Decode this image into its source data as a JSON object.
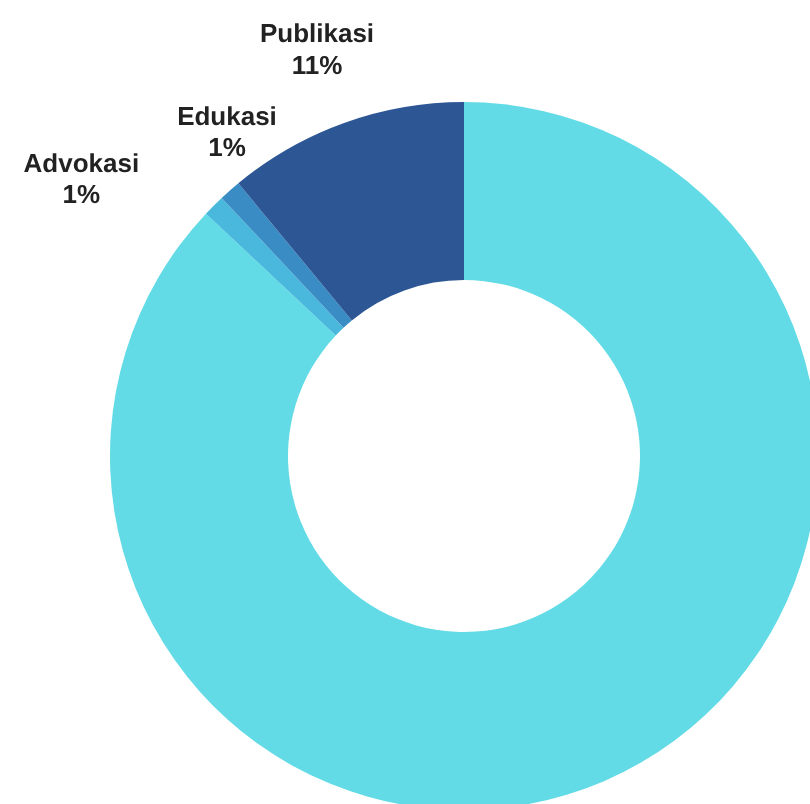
{
  "chart_data": {
    "type": "donut",
    "categories": [
      null,
      "Advokasi",
      "Edukasi",
      "Publikasi"
    ],
    "values": [
      87,
      1,
      1,
      11
    ],
    "value_labels": [
      null,
      "1%",
      "1%",
      "11%"
    ],
    "colors": [
      "#62dbe6",
      "#4ab8dc",
      "#3a8cc4",
      "#2c5694"
    ]
  }
}
